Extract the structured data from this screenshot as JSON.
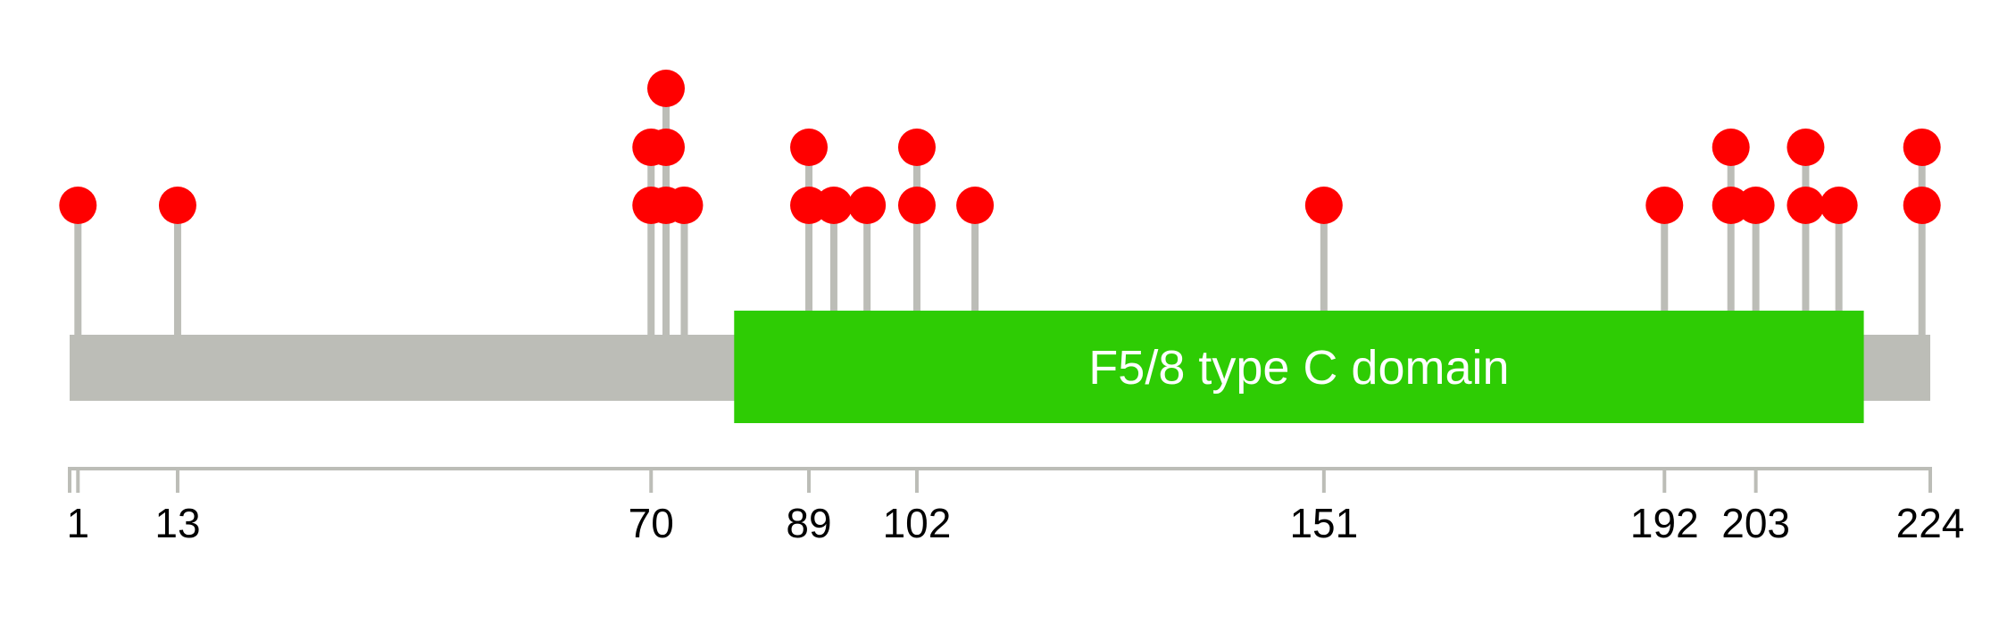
{
  "protein": {
    "length": 224,
    "backbone_color": "#bcbdb7"
  },
  "domains": [
    {
      "label": "F5/8 type C domain",
      "start": 80,
      "end": 216,
      "color": "#2ecc04"
    }
  ],
  "axis": {
    "tick_labels": [
      {
        "pos": 1,
        "label": "1"
      },
      {
        "pos": 13,
        "label": "13"
      },
      {
        "pos": 70,
        "label": "70"
      },
      {
        "pos": 89,
        "label": "89"
      },
      {
        "pos": 102,
        "label": "102"
      },
      {
        "pos": 151,
        "label": "151"
      },
      {
        "pos": 192,
        "label": "192"
      },
      {
        "pos": 203,
        "label": "203"
      },
      {
        "pos": 224,
        "label": "224"
      }
    ],
    "minor_ticks": [
      0,
      1,
      13,
      70,
      89,
      102,
      151,
      192,
      203,
      224
    ],
    "color": "#bcbdb7"
  },
  "mutations": {
    "marker_color": "#ff0000",
    "stem_color": "#bcbdb7",
    "sites": [
      {
        "pos": 1,
        "count": 1
      },
      {
        "pos": 13,
        "count": 1
      },
      {
        "pos": 70,
        "count": 2
      },
      {
        "pos": 71.8,
        "count": 3
      },
      {
        "pos": 74,
        "count": 1
      },
      {
        "pos": 89,
        "count": 2
      },
      {
        "pos": 92,
        "count": 1
      },
      {
        "pos": 96,
        "count": 1
      },
      {
        "pos": 102,
        "count": 2
      },
      {
        "pos": 109,
        "count": 1
      },
      {
        "pos": 151,
        "count": 1
      },
      {
        "pos": 192,
        "count": 1
      },
      {
        "pos": 200,
        "count": 2
      },
      {
        "pos": 203,
        "count": 1
      },
      {
        "pos": 209,
        "count": 2
      },
      {
        "pos": 213,
        "count": 1
      },
      {
        "pos": 223,
        "count": 2
      }
    ]
  }
}
